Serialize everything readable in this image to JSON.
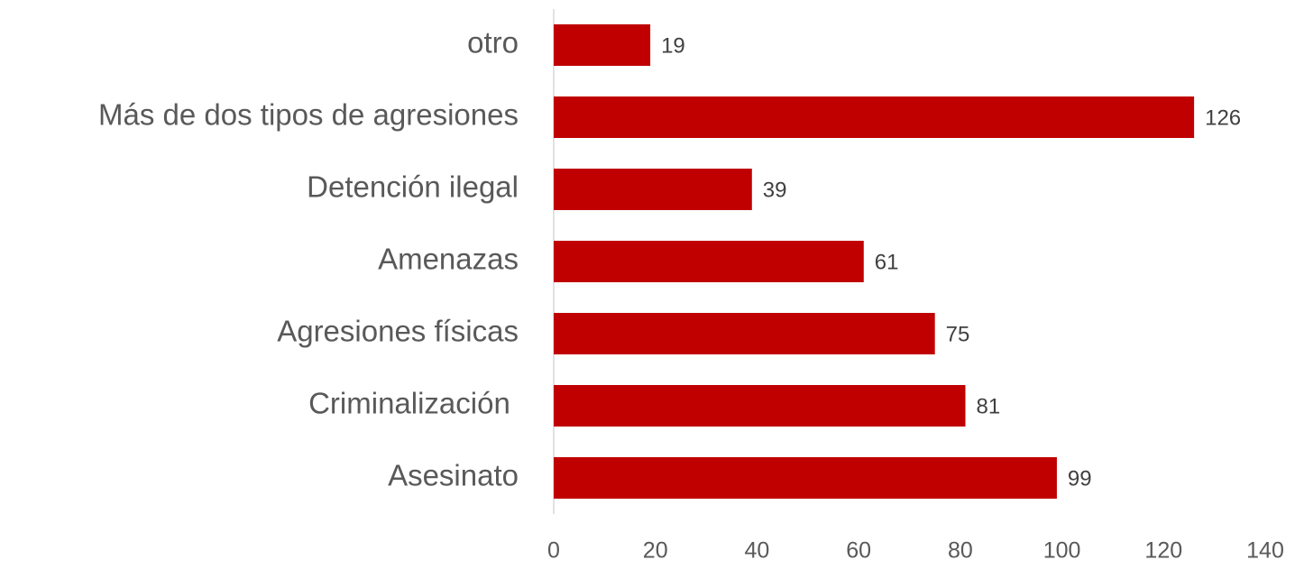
{
  "chart_data": {
    "type": "bar",
    "orientation": "horizontal",
    "categories": [
      "otro",
      "Más de dos tipos de agresiones",
      "Detención ilegal",
      "Amenazas",
      "Agresiones físicas",
      "Criminalización ",
      "Asesinato"
    ],
    "values": [
      19,
      126,
      39,
      61,
      75,
      81,
      99
    ],
    "color": "#c00000",
    "xlim": [
      0,
      140
    ],
    "xticks": [
      0,
      20,
      40,
      60,
      80,
      100,
      120,
      140
    ],
    "grid": false
  }
}
